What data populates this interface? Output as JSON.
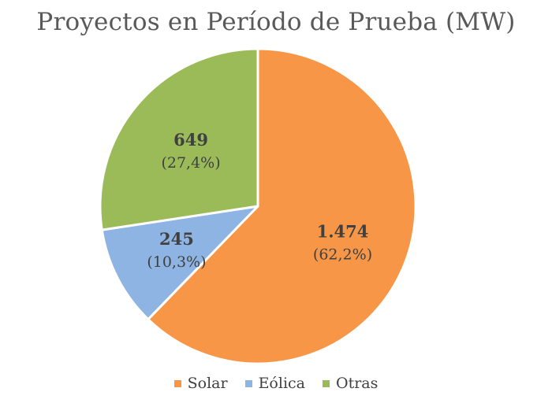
{
  "chart_data": {
    "type": "pie",
    "title": "Proyectos en Período de Prueba (MW)",
    "start_angle_deg": 0,
    "direction": "clockwise",
    "slices": [
      {
        "name": "Solar",
        "value": 1474,
        "value_label": "1.474",
        "percent_label": "(62,2%)",
        "color": "#F79646"
      },
      {
        "name": "Eólica",
        "value": 245,
        "value_label": "245",
        "percent_label": "(10,3%)",
        "color": "#8DB4E2"
      },
      {
        "name": "Otras",
        "value": 649,
        "value_label": "649",
        "percent_label": "(27,4%)",
        "color": "#9BBB59"
      }
    ],
    "legend_position": "bottom",
    "label_color": "#404040"
  }
}
